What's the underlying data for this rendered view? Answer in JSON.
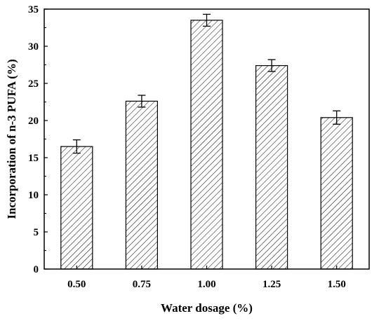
{
  "chart_data": {
    "type": "bar",
    "categories": [
      "0.50",
      "0.75",
      "1.00",
      "1.25",
      "1.50"
    ],
    "values": [
      16.5,
      22.6,
      33.5,
      27.4,
      20.4
    ],
    "errors": [
      0.9,
      0.8,
      0.8,
      0.8,
      0.9
    ],
    "xlabel": "Water dosage (%)",
    "ylabel": "Incorporation of n-3 PUFA (%)",
    "ylim": [
      0,
      35
    ],
    "yticks": [
      0,
      5,
      10,
      15,
      20,
      25,
      30,
      35
    ],
    "grid": false,
    "bar_fill": "hatched",
    "colors": {
      "bar_stroke": "#000000",
      "hatch": "#000000",
      "background": "#ffffff"
    }
  }
}
